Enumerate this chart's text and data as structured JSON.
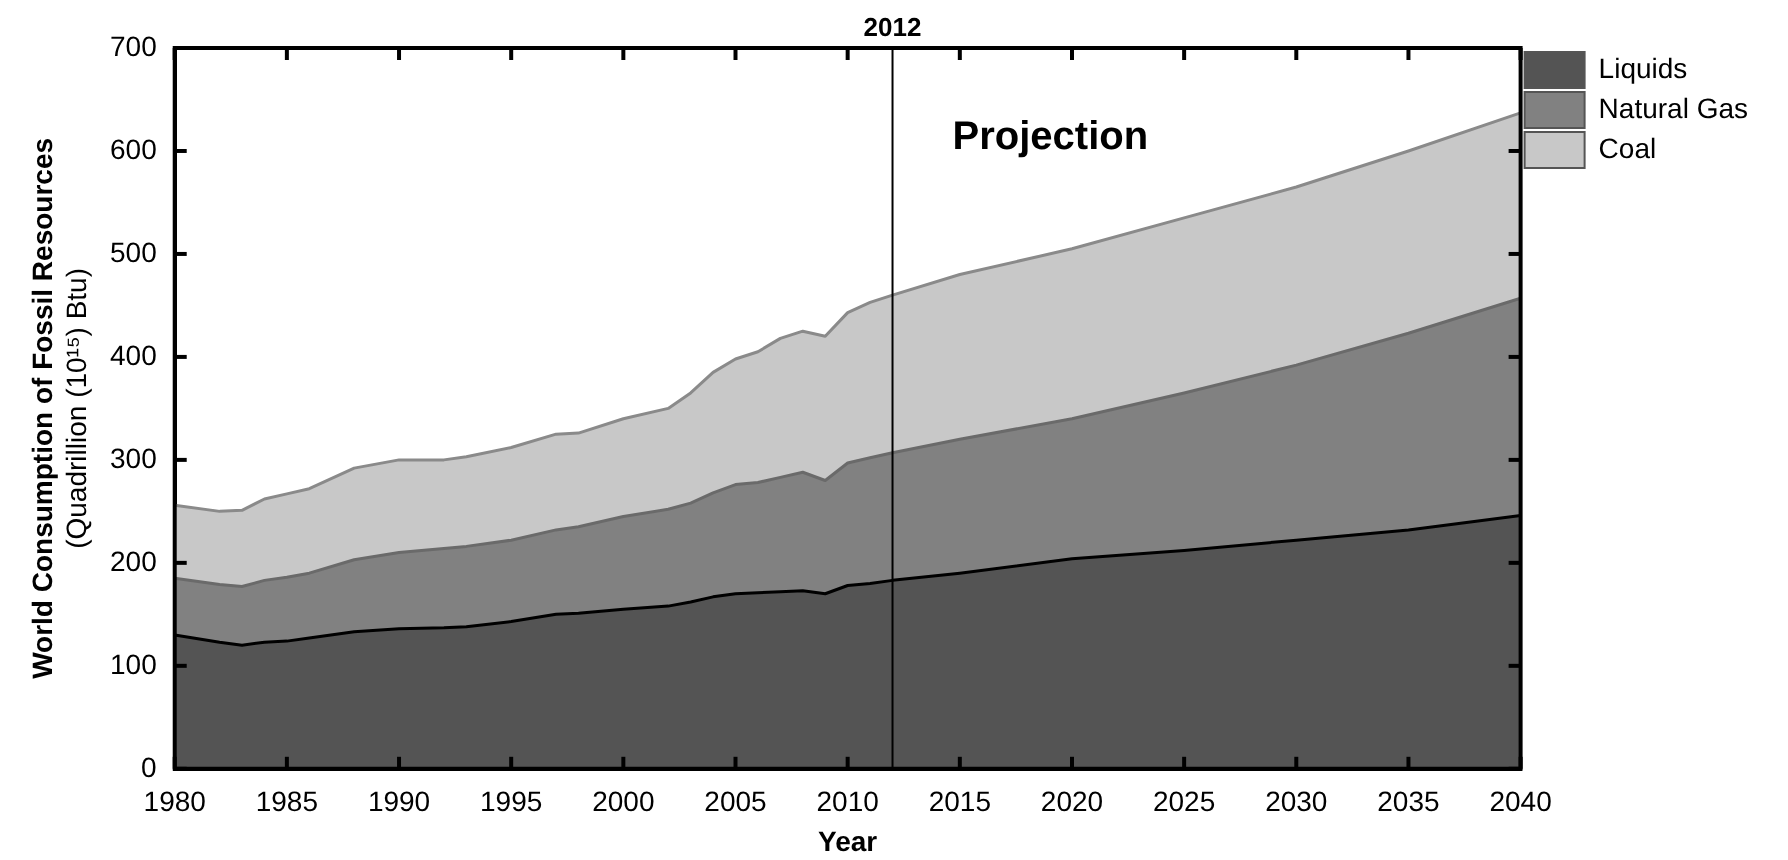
{
  "chart_data": {
    "type": "area",
    "stacked": true,
    "xlabel": "Year",
    "ylabel": "World Consumption of Fossil Resources\n(Quadrillion (10¹⁵) Btu)",
    "x": [
      1980,
      1982,
      1983,
      1984,
      1985,
      1986,
      1988,
      1990,
      1992,
      1993,
      1995,
      1997,
      1998,
      2000,
      2002,
      2003,
      2004,
      2005,
      2006,
      2007,
      2008,
      2009,
      2010,
      2011,
      2012,
      2015,
      2020,
      2025,
      2030,
      2035,
      2040
    ],
    "series": [
      {
        "name": "Liquids",
        "color": "#545454",
        "values": [
          130,
          123,
          120,
          123,
          124,
          127,
          133,
          136,
          137,
          138,
          143,
          150,
          151,
          155,
          158,
          162,
          167,
          170,
          171,
          172,
          173,
          170,
          178,
          180,
          183,
          190,
          204,
          212,
          222,
          232,
          246
        ]
      },
      {
        "name": "Natural Gas",
        "color": "#818181",
        "values": [
          55,
          56,
          57,
          60,
          62,
          63,
          70,
          74,
          77,
          78,
          79,
          82,
          84,
          90,
          94,
          96,
          101,
          106,
          107,
          111,
          115,
          110,
          119,
          122,
          124,
          130,
          136,
          153,
          170,
          191,
          211
        ]
      },
      {
        "name": "Coal",
        "color": "#c8c8c8",
        "values": [
          71,
          71,
          74,
          79,
          81,
          82,
          89,
          90,
          86,
          87,
          90,
          93,
          91,
          95,
          98,
          107,
          117,
          122,
          127,
          135,
          137,
          140,
          146,
          151,
          153,
          160,
          165,
          170,
          173,
          177,
          180
        ]
      }
    ],
    "xlim": [
      1980,
      2040
    ],
    "xticks": [
      1980,
      1985,
      1990,
      1995,
      2000,
      2005,
      2010,
      2015,
      2020,
      2025,
      2030,
      2035,
      2040
    ],
    "ylim": [
      0,
      700
    ],
    "yticks": [
      0,
      100,
      200,
      300,
      400,
      500,
      600,
      700
    ],
    "ref_lines": [
      {
        "axis": "x",
        "value": 2012,
        "label": "2012",
        "color": "#000000"
      }
    ],
    "annotations": [
      "Projection"
    ],
    "legend": "top right",
    "grid": false
  }
}
